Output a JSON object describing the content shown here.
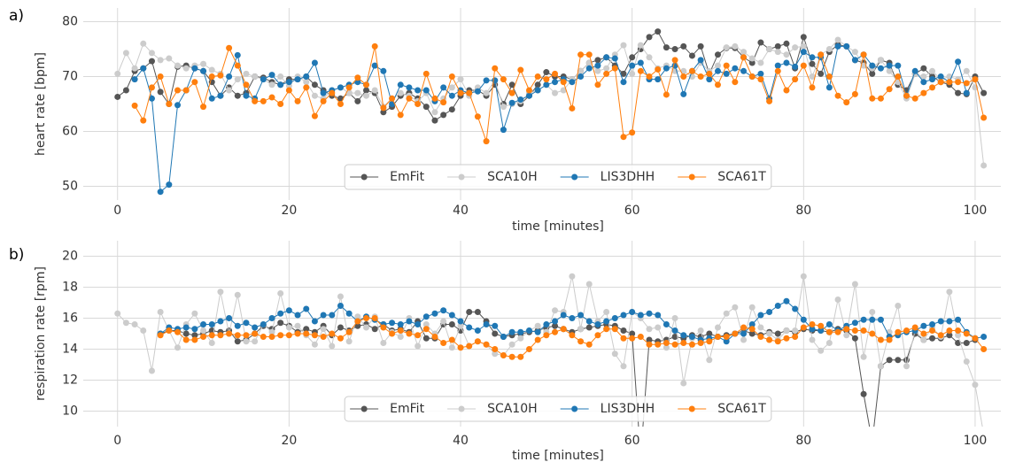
{
  "chart_data": [
    {
      "type": "line",
      "panel_label": "a)",
      "ylabel": "heart rate [bpm]",
      "xlabel": "time [minutes]",
      "x": [
        0,
        1,
        2,
        3,
        4,
        5,
        6,
        7,
        8,
        9,
        10,
        11,
        12,
        13,
        14,
        15,
        16,
        17,
        18,
        19,
        20,
        21,
        22,
        23,
        24,
        25,
        26,
        27,
        28,
        29,
        30,
        31,
        32,
        33,
        34,
        35,
        36,
        37,
        38,
        39,
        40,
        41,
        42,
        43,
        44,
        45,
        46,
        47,
        48,
        49,
        50,
        51,
        52,
        53,
        54,
        55,
        56,
        57,
        58,
        59,
        60,
        61,
        62,
        63,
        64,
        65,
        66,
        67,
        68,
        69,
        70,
        71,
        72,
        73,
        74,
        75,
        76,
        77,
        78,
        79,
        80,
        81,
        82,
        83,
        84,
        85,
        86,
        87,
        88,
        89,
        90,
        91,
        92,
        93,
        94,
        95,
        96,
        97,
        98,
        99,
        100,
        101
      ],
      "xlim": [
        -4,
        103
      ],
      "xticks": [
        0,
        20,
        40,
        60,
        80,
        100
      ],
      "ylim": [
        47.5,
        82.5
      ],
      "yticks": [
        50,
        60,
        70,
        80
      ],
      "grid": true,
      "legend": "lower center",
      "series": [
        {
          "name": "EmFit",
          "color": "#555555",
          "values": [
            66.3,
            67.5,
            71,
            71.5,
            72.8,
            67.2,
            65,
            71.8,
            72,
            71.5,
            71,
            69,
            66.5,
            68,
            66.5,
            67,
            70,
            69.8,
            69,
            68.5,
            69.5,
            69.5,
            70,
            68.5,
            67.5,
            66.5,
            66,
            67,
            65.5,
            67.5,
            67,
            63.5,
            64.5,
            66.5,
            67,
            66,
            64.5,
            62,
            63,
            64,
            66.5,
            67.5,
            67.5,
            66.5,
            68.5,
            65,
            68.5,
            65,
            66.5,
            68.5,
            70.8,
            70,
            70,
            69.5,
            71,
            72.5,
            73,
            73.5,
            72,
            70.5,
            73.5,
            75,
            77.2,
            78.2,
            75.3,
            75,
            75.5,
            73.8,
            75.5,
            70.5,
            74,
            75.2,
            75.2,
            73.5,
            72.5,
            76.2,
            75,
            75.5,
            76,
            71.5,
            77.2,
            72.3,
            70.5,
            74.5,
            75.8,
            75.5,
            73,
            72.5,
            70.5,
            73,
            72.5,
            68.5,
            67.5,
            70.5,
            71.5,
            70,
            69,
            68.5,
            67,
            66.8,
            70,
            67
          ]
        },
        {
          "name": "SCA10H",
          "color": "#cccccc",
          "values": [
            70.5,
            74.3,
            71.5,
            76,
            74.3,
            73,
            73.3,
            72,
            71.5,
            72,
            72.3,
            71.2,
            70.5,
            67.5,
            69.5,
            70.5,
            70,
            69.5,
            68.5,
            70,
            68.3,
            70,
            69,
            66.5,
            66,
            67.5,
            68,
            67,
            67,
            66.5,
            67.5,
            64.5,
            66,
            67,
            66.5,
            65.5,
            67,
            63.5,
            66,
            68,
            69.5,
            66.5,
            68,
            67,
            69.3,
            64.5,
            65,
            65.5,
            67,
            67.5,
            68.5,
            67,
            67.5,
            69.5,
            71,
            72.5,
            71,
            71.5,
            74,
            75.7,
            70.5,
            75.7,
            73.5,
            71.5,
            72,
            71,
            71,
            70,
            72.5,
            71,
            72,
            75.3,
            75.5,
            74.5,
            73.3,
            72.5,
            75,
            74.5,
            74,
            75.3,
            75.5,
            70,
            74,
            75,
            76.7,
            75.5,
            74.5,
            72,
            71.5,
            73,
            71,
            69,
            66,
            70.5,
            70,
            71,
            69.5,
            70,
            69.5,
            71,
            68,
            53.8
          ]
        },
        {
          "name": "LIS3DHH",
          "color": "#1f77b4",
          "values": [
            null,
            null,
            69.5,
            71.5,
            66,
            49,
            50.3,
            64.8,
            67.5,
            71.5,
            71,
            66,
            66.5,
            70,
            73.9,
            66.5,
            66,
            69.5,
            70.3,
            68.5,
            69,
            69.5,
            70,
            72.5,
            67,
            67.5,
            68,
            68.5,
            69,
            68.5,
            72,
            71,
            65,
            68.5,
            68,
            67.5,
            67.5,
            65.5,
            68,
            66.5,
            67.5,
            67,
            67.3,
            69.3,
            69.3,
            60.3,
            65.2,
            65.8,
            66.5,
            67.5,
            68.5,
            69,
            69.5,
            69,
            70,
            71.5,
            72,
            73.5,
            73.3,
            69,
            72,
            72.5,
            69.5,
            69.5,
            71.5,
            72,
            66.8,
            71,
            73,
            69.5,
            71,
            70.5,
            71.5,
            71,
            70,
            70.5,
            66,
            72,
            72.5,
            71.8,
            74.5,
            73.5,
            73.5,
            68,
            75.5,
            75.5,
            73,
            74,
            72,
            71.5,
            72,
            72,
            66.5,
            71,
            69,
            69.5,
            70,
            69,
            72.7,
            67,
            null,
            null
          ]
        },
        {
          "name": "SCA61T",
          "color": "#ff7f0e",
          "values": [
            null,
            null,
            64.7,
            62,
            68,
            70,
            65,
            67.5,
            67.5,
            69,
            64.5,
            70,
            70.2,
            75.2,
            72,
            68.5,
            65.5,
            65.5,
            66.2,
            65,
            67.5,
            65.5,
            68,
            62.8,
            65.5,
            67,
            65,
            68,
            69.8,
            68.5,
            75.5,
            64.3,
            66,
            63,
            66,
            65,
            70.5,
            66,
            65.3,
            70,
            67,
            67,
            62.7,
            58.2,
            71.5,
            69.5,
            67,
            71.2,
            67.5,
            70,
            69.5,
            70.5,
            69,
            64.2,
            74,
            74,
            68.5,
            70.5,
            71.5,
            59,
            59.8,
            71,
            70,
            71.3,
            66.7,
            73,
            70,
            71,
            70,
            70.5,
            68.5,
            72,
            69,
            73.5,
            70,
            69.5,
            65.5,
            71,
            67.5,
            69.5,
            72,
            68,
            74,
            70,
            66.5,
            65.3,
            66.8,
            74,
            66,
            66,
            67.7,
            70,
            66.5,
            66,
            67,
            68,
            69,
            69,
            69,
            68.8,
            69.5,
            62.5
          ]
        }
      ]
    },
    {
      "type": "line",
      "panel_label": "b)",
      "ylabel": "respiration rate [rpm]",
      "xlabel": "time [minutes]",
      "x": [
        0,
        1,
        2,
        3,
        4,
        5,
        6,
        7,
        8,
        9,
        10,
        11,
        12,
        13,
        14,
        15,
        16,
        17,
        18,
        19,
        20,
        21,
        22,
        23,
        24,
        25,
        26,
        27,
        28,
        29,
        30,
        31,
        32,
        33,
        34,
        35,
        36,
        37,
        38,
        39,
        40,
        41,
        42,
        43,
        44,
        45,
        46,
        47,
        48,
        49,
        50,
        51,
        52,
        53,
        54,
        55,
        56,
        57,
        58,
        59,
        60,
        61,
        62,
        63,
        64,
        65,
        66,
        67,
        68,
        69,
        70,
        71,
        72,
        73,
        74,
        75,
        76,
        77,
        78,
        79,
        80,
        81,
        82,
        83,
        84,
        85,
        86,
        87,
        88,
        89,
        90,
        91,
        92,
        93,
        94,
        95,
        96,
        97,
        98,
        99,
        100,
        101
      ],
      "xlim": [
        -4,
        103
      ],
      "xticks": [
        0,
        20,
        40,
        60,
        80,
        100
      ],
      "ylim": [
        9,
        21
      ],
      "yticks": [
        10,
        12,
        14,
        16,
        18,
        20
      ],
      "grid": true,
      "legend": "lower center",
      "series": [
        {
          "name": "EmFit",
          "color": "#555555",
          "values": [
            null,
            null,
            null,
            null,
            null,
            15,
            15.2,
            15.2,
            15,
            14.9,
            15,
            15.2,
            15.1,
            15.2,
            14.5,
            14.6,
            15,
            15.5,
            15.3,
            15.7,
            15.5,
            15.1,
            15.3,
            15.1,
            15.5,
            14.9,
            15.4,
            15.2,
            15.5,
            15.6,
            15.3,
            15.6,
            15.2,
            15.3,
            15.1,
            15.8,
            14.7,
            14.7,
            15.6,
            15.6,
            15.2,
            16.4,
            16.4,
            15.8,
            15,
            14.8,
            14.9,
            15,
            15.1,
            15.2,
            15.4,
            15.5,
            15.3,
            15.1,
            15.3,
            15.4,
            15.5,
            15.6,
            15.5,
            15.2,
            15,
            7,
            14.6,
            14.5,
            14.6,
            14.8,
            14.7,
            14.9,
            14.8,
            15,
            14.8,
            14.9,
            15,
            15.2,
            15,
            14.9,
            15.1,
            15,
            15.2,
            15.1,
            15.3,
            15.2,
            15.2,
            15.1,
            15.3,
            15.2,
            14.7,
            11.1,
            8,
            12.9,
            13.3,
            13.3,
            13.3,
            15,
            14.6,
            14.7,
            14.7,
            14.9,
            14.4,
            14.4,
            14.6,
            null
          ]
        },
        {
          "name": "SCA10H",
          "color": "#cccccc",
          "values": [
            16.3,
            15.7,
            15.6,
            15.2,
            12.6,
            16.4,
            15.2,
            14.1,
            15.6,
            16.3,
            15.2,
            14.4,
            17.7,
            15,
            17.5,
            14.5,
            14.5,
            15.6,
            15.1,
            17.6,
            15.4,
            15.5,
            14.9,
            14.3,
            15.3,
            14.2,
            17.4,
            14.5,
            16.1,
            15.4,
            16.1,
            14.4,
            15.1,
            14.8,
            16,
            14.2,
            15.6,
            15,
            15.8,
            14.1,
            15.5,
            14.2,
            14.5,
            14.3,
            13.7,
            13.6,
            14.3,
            14.7,
            15.2,
            15.5,
            15.1,
            16.5,
            16.4,
            18.7,
            15.3,
            18.2,
            15.8,
            16.4,
            13.7,
            12.9,
            16.4,
            16,
            15.3,
            15.4,
            14.1,
            16,
            11.8,
            14.7,
            15.2,
            13.3,
            15.4,
            16.3,
            16.7,
            14.6,
            16.7,
            15.4,
            15,
            14.6,
            15.2,
            15.2,
            18.7,
            14.6,
            13.9,
            14.4,
            17.2,
            14.9,
            18.2,
            13.5,
            16.4,
            12.9,
            15.1,
            16.8,
            12.9,
            15.2,
            14.6,
            15.4,
            14.8,
            17.7,
            14.9,
            13.2,
            11.7,
            8.5
          ]
        },
        {
          "name": "LIS3DHH",
          "color": "#1f77b4",
          "values": [
            null,
            null,
            null,
            null,
            null,
            15,
            15.4,
            15.3,
            15.4,
            15.3,
            15.6,
            15.6,
            15.8,
            16,
            15.5,
            15.7,
            15.4,
            15.6,
            16,
            16.3,
            16.5,
            16.2,
            16.6,
            15.8,
            16.2,
            16.2,
            16.8,
            16.3,
            15.8,
            16.1,
            15.9,
            15.6,
            15.7,
            15.6,
            15.8,
            15.6,
            16.1,
            16.3,
            16.5,
            16.2,
            15.8,
            15.4,
            15.2,
            15.6,
            15.5,
            14.8,
            15.1,
            15.1,
            15.2,
            15.1,
            15.6,
            15.8,
            16.2,
            16,
            16.2,
            15.8,
            15.6,
            15.8,
            16,
            16.2,
            16.4,
            16.2,
            16.3,
            16.2,
            15.6,
            15.2,
            14.9,
            14.8,
            14.6,
            14.7,
            14.8,
            14.5,
            15,
            15,
            15.6,
            16.2,
            16.4,
            16.8,
            17.1,
            16.6,
            15.9,
            15.3,
            15.2,
            15.6,
            15.2,
            15.5,
            15.7,
            15.9,
            15.9,
            15.9,
            14.8,
            14.9,
            15.1,
            15.2,
            15.5,
            15.6,
            15.8,
            15.8,
            15.9,
            15.1,
            14.7,
            14.8
          ]
        },
        {
          "name": "SCA61T",
          "color": "#ff7f0e",
          "values": [
            null,
            null,
            null,
            null,
            null,
            14.9,
            15.2,
            15.1,
            14.6,
            14.6,
            14.8,
            14.9,
            14.9,
            15,
            14.9,
            14.9,
            15,
            14.8,
            14.8,
            14.9,
            14.9,
            15,
            15,
            14.9,
            14.8,
            15,
            14.7,
            15.1,
            15.8,
            16,
            16,
            15.4,
            15,
            15.2,
            15,
            14.9,
            15.3,
            14.8,
            14.4,
            14.6,
            14.1,
            14.2,
            14.5,
            14.3,
            14,
            13.6,
            13.5,
            13.5,
            14,
            14.6,
            14.9,
            15.1,
            15.3,
            14.9,
            14.5,
            14.3,
            14.9,
            15.3,
            15.3,
            14.7,
            14.7,
            14.8,
            14.3,
            14.3,
            14.4,
            14.3,
            14.4,
            14.3,
            14.4,
            14.5,
            14.8,
            14.8,
            15,
            15.4,
            15.3,
            14.8,
            14.6,
            14.5,
            14.7,
            14.8,
            15.4,
            15.6,
            15.5,
            15.1,
            15.1,
            15.3,
            15.2,
            15.2,
            15,
            14.6,
            14.6,
            15.1,
            15.2,
            15.4,
            15,
            15.2,
            14.9,
            15.2,
            15.2,
            15,
            14.7,
            14
          ]
        }
      ]
    }
  ]
}
